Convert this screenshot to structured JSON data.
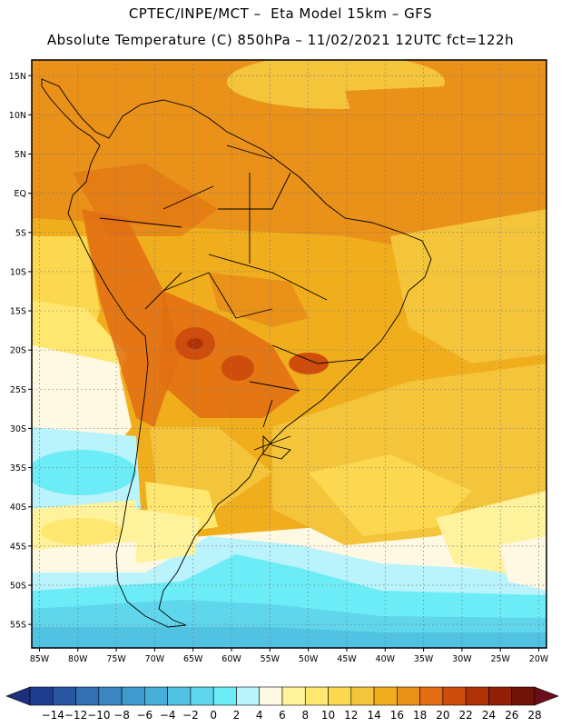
{
  "header": {
    "line1": "CPTEC/INPE/MCT –  Eta Model 15km – GFS",
    "line2": "Absolute Temperature (C) 850hPa – 11/02/2021 12UTC fct=122h"
  },
  "map": {
    "lon_range": [
      -86,
      -19
    ],
    "lat_range": [
      -58,
      17
    ],
    "lat_ticks": [
      {
        "v": 15,
        "label": "15N"
      },
      {
        "v": 10,
        "label": "10N"
      },
      {
        "v": 5,
        "label": "5N"
      },
      {
        "v": 0,
        "label": "EQ"
      },
      {
        "v": -5,
        "label": "5S"
      },
      {
        "v": -10,
        "label": "10S"
      },
      {
        "v": -15,
        "label": "15S"
      },
      {
        "v": -20,
        "label": "20S"
      },
      {
        "v": -25,
        "label": "25S"
      },
      {
        "v": -30,
        "label": "30S"
      },
      {
        "v": -35,
        "label": "35S"
      },
      {
        "v": -40,
        "label": "40S"
      },
      {
        "v": -45,
        "label": "45S"
      },
      {
        "v": -50,
        "label": "50S"
      },
      {
        "v": -55,
        "label": "55S"
      }
    ],
    "lon_ticks": [
      {
        "v": -85,
        "label": "85W"
      },
      {
        "v": -80,
        "label": "80W"
      },
      {
        "v": -75,
        "label": "75W"
      },
      {
        "v": -70,
        "label": "70W"
      },
      {
        "v": -65,
        "label": "65W"
      },
      {
        "v": -60,
        "label": "60W"
      },
      {
        "v": -55,
        "label": "55W"
      },
      {
        "v": -50,
        "label": "50W"
      },
      {
        "v": -45,
        "label": "45W"
      },
      {
        "v": -40,
        "label": "40W"
      },
      {
        "v": -35,
        "label": "35W"
      },
      {
        "v": -30,
        "label": "30W"
      },
      {
        "v": -25,
        "label": "25W"
      },
      {
        "v": -20,
        "label": "20W"
      }
    ]
  },
  "colorbar": {
    "labels": [
      "-14",
      "-12",
      "-10",
      "-8",
      "-6",
      "-4",
      "-2",
      "0",
      "2",
      "4",
      "6",
      "8",
      "10",
      "12",
      "14",
      "16",
      "18",
      "20",
      "22",
      "24",
      "26",
      "28"
    ],
    "colors": [
      "#1f3d8f",
      "#2a57a3",
      "#3470b4",
      "#3b86c2",
      "#3f9bcd",
      "#46aed8",
      "#52c2e2",
      "#5fd6ec",
      "#6cecf6",
      "#b9f3fb",
      "#fff8e3",
      "#fff29c",
      "#ffe770",
      "#fbd84f",
      "#f4c43b",
      "#f0ae1d",
      "#e99119",
      "#e26d12",
      "#cf4d0c",
      "#b23208",
      "#931f08",
      "#711207"
    ],
    "low_end_color": "#1d2f7a",
    "high_end_color": "#6a0f1a"
  }
}
